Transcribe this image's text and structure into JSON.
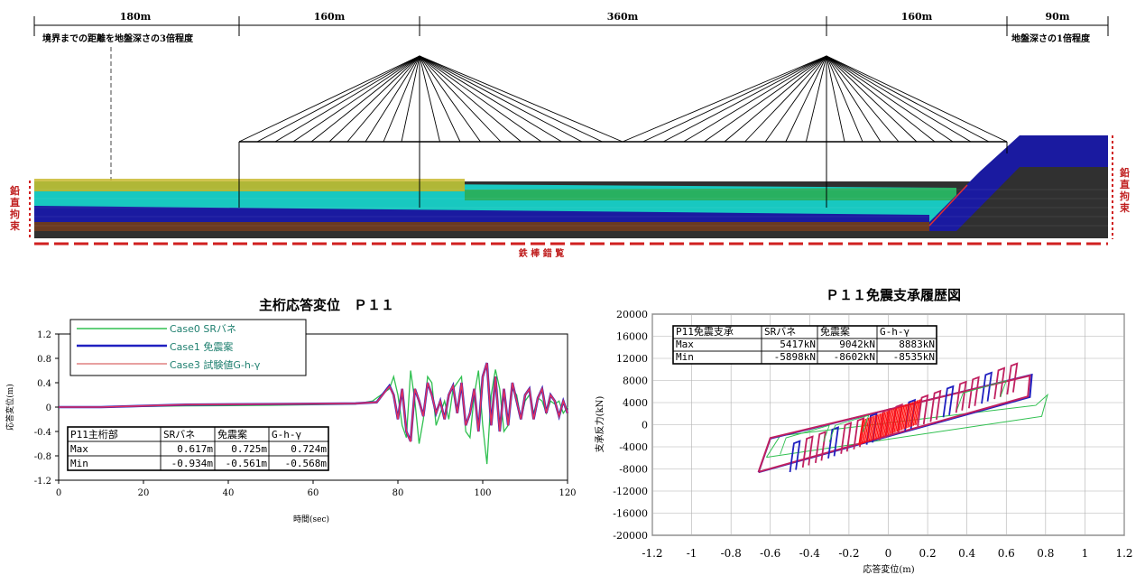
{
  "bridge": {
    "spans": [
      "180m",
      "160m",
      "360m",
      "160m",
      "90m"
    ],
    "left_note": "境界までの距離を地盤深さの3倍程度",
    "right_note": "地盤深さの1倍程度",
    "side_label": "鉛直拘束",
    "bottom_label": "鉄 棒 錯 覧",
    "colors": {
      "deck": "#000000",
      "ground_dark": "#303030",
      "layer_blue": "#1a1aa0",
      "layer_cyan": "#18c8c0",
      "layer_green": "#28b060",
      "layer_yellow": "#c8b830",
      "constraint": "#d02020"
    }
  },
  "chart_data": [
    {
      "type": "line",
      "title": "主桁応答変位　Ｐ１１",
      "xlabel": "時間(sec)",
      "ylabel": "応答変位(m)",
      "xlim": [
        0,
        120
      ],
      "ylim": [
        -1.2,
        1.2
      ],
      "xticks": [
        "0",
        "20",
        "40",
        "60",
        "80",
        "100",
        "120"
      ],
      "yticks": [
        "1.2",
        "0.8",
        "0.4",
        "0",
        "-0.4",
        "-0.8",
        "-1.2"
      ],
      "grid": false,
      "legend_position": "top-left",
      "series": [
        {
          "name": "Case0 SRバネ",
          "color": "#30c050",
          "x": [
            0,
            10,
            30,
            50,
            70,
            74,
            76,
            78,
            79,
            80,
            81,
            82,
            83,
            84,
            85,
            86,
            87,
            88,
            89,
            90,
            91,
            92,
            93,
            94,
            95,
            96,
            97,
            98,
            99,
            100,
            101,
            102,
            103,
            104,
            105,
            106,
            107,
            108,
            109,
            110,
            111,
            112,
            113,
            114,
            115,
            116,
            117,
            118,
            119,
            120
          ],
          "y": [
            0,
            0,
            0.02,
            0.03,
            0.05,
            0.1,
            0.2,
            0.3,
            0.5,
            0.2,
            -0.3,
            -0.5,
            0.6,
            0.1,
            -0.6,
            -0.2,
            0.5,
            0.4,
            -0.3,
            -0.1,
            0.1,
            -0.2,
            0.3,
            0.4,
            0.5,
            -0.4,
            -0.5,
            0.2,
            0.6,
            -0.3,
            -0.934,
            0.2,
            0.617,
            0.3,
            -0.4,
            -0.3,
            0.3,
            0.2,
            -0.2,
            0.1,
            0.2,
            -0.1,
            0.15,
            0.1,
            -0.1,
            0.1,
            0.05,
            0.1,
            -0.1,
            0
          ]
        },
        {
          "name": "Case1 免震案",
          "color": "#2020c0",
          "x": [
            0,
            10,
            30,
            50,
            70,
            75,
            78,
            79,
            80,
            81,
            82,
            83,
            84,
            85,
            86,
            87,
            88,
            89,
            90,
            91,
            92,
            93,
            94,
            95,
            96,
            97,
            98,
            99,
            100,
            101,
            102,
            103,
            104,
            105,
            106,
            107,
            108,
            109,
            110,
            111,
            112,
            113,
            114,
            115,
            116,
            117,
            118,
            119,
            120
          ],
          "y": [
            0,
            0,
            0.04,
            0.05,
            0.06,
            0.08,
            0.35,
            0.2,
            -0.2,
            0.3,
            -0.4,
            -0.561,
            0.3,
            0.1,
            -0.15,
            0.4,
            0.2,
            -0.1,
            0.1,
            -0.2,
            0.2,
            0.35,
            -0.1,
            0.4,
            -0.3,
            -0.1,
            0.3,
            -0.4,
            0.5,
            0.725,
            -0.3,
            0.5,
            -0.4,
            0.3,
            -0.3,
            0.4,
            0.1,
            -0.2,
            0.2,
            0.3,
            -0.2,
            0.15,
            0.3,
            -0.1,
            0.2,
            0.1,
            -0.15,
            0.1,
            -0.1
          ]
        },
        {
          "name": "Case3 試験値G-h-γ",
          "color": "#e03060",
          "x": [
            0,
            10,
            30,
            50,
            70,
            75,
            78,
            79,
            80,
            81,
            82,
            83,
            84,
            85,
            86,
            87,
            88,
            89,
            90,
            91,
            92,
            93,
            94,
            95,
            96,
            97,
            98,
            99,
            100,
            101,
            102,
            103,
            104,
            105,
            106,
            107,
            108,
            109,
            110,
            111,
            112,
            113,
            114,
            115,
            116,
            117,
            118,
            119,
            120
          ],
          "y": [
            0,
            0,
            0.04,
            0.05,
            0.06,
            0.08,
            0.34,
            0.2,
            -0.2,
            0.3,
            -0.4,
            -0.568,
            0.3,
            0.1,
            -0.15,
            0.4,
            0.2,
            -0.1,
            0.1,
            -0.2,
            0.2,
            0.35,
            -0.1,
            0.4,
            -0.3,
            -0.1,
            0.3,
            -0.4,
            0.5,
            0.724,
            -0.3,
            0.5,
            -0.4,
            0.3,
            -0.3,
            0.4,
            0.1,
            -0.2,
            0.2,
            0.3,
            -0.2,
            0.15,
            0.3,
            -0.1,
            0.2,
            0.1,
            -0.15,
            0.1,
            -0.1
          ]
        }
      ],
      "table": {
        "header": [
          "P11主桁部",
          "SRバネ",
          "免震案",
          "G-h-γ"
        ],
        "rows": [
          [
            "Max",
            "0.617m",
            "0.725m",
            "0.724m"
          ],
          [
            "Min",
            "-0.934m",
            "-0.561m",
            "-0.568m"
          ]
        ]
      }
    },
    {
      "type": "line",
      "title": "Ｐ１１免震支承履歴図",
      "xlabel": "応答変位(m)",
      "ylabel": "支承反力(kN)",
      "xlim": [
        -1.2,
        1.2
      ],
      "ylim": [
        -20000,
        20000
      ],
      "xticks": [
        "-1.2",
        "-1",
        "-0.8",
        "-0.6",
        "-0.4",
        "-0.2",
        "0",
        "0.2",
        "0.4",
        "0.6",
        "0.8",
        "1",
        "1.2"
      ],
      "yticks": [
        "20000",
        "16000",
        "12000",
        "8000",
        "4000",
        "0",
        "-4000",
        "-8000",
        "-12000",
        "-16000",
        "-20000"
      ],
      "grid": true,
      "series": [
        {
          "name": "SRバネ",
          "color": "#30c050",
          "x": [
            -0.62,
            -0.55,
            0.75,
            0.81,
            0.78,
            -0.62
          ],
          "y": [
            -5898,
            -2000,
            3500,
            5417,
            1500,
            -5898
          ]
        },
        {
          "name": "免震案",
          "color": "#2020c0",
          "x": [
            -0.66,
            -0.6,
            0.73,
            0.72,
            -0.66
          ],
          "y": [
            -8602,
            -2500,
            9042,
            5000,
            -8602
          ]
        },
        {
          "name": "G-h-γ",
          "color": "#c02060",
          "x": [
            -0.66,
            -0.6,
            0.72,
            0.71,
            -0.66
          ],
          "y": [
            -8535,
            -2400,
            8883,
            5100,
            -8535
          ]
        }
      ],
      "table": {
        "header": [
          "P11免震支承",
          "SRバネ",
          "免震案",
          "G-h-γ"
        ],
        "rows": [
          [
            "Max",
            "5417kN",
            "9042kN",
            "8883kN"
          ],
          [
            "Min",
            "-5898kN",
            "-8602kN",
            "-8535kN"
          ]
        ]
      }
    }
  ]
}
